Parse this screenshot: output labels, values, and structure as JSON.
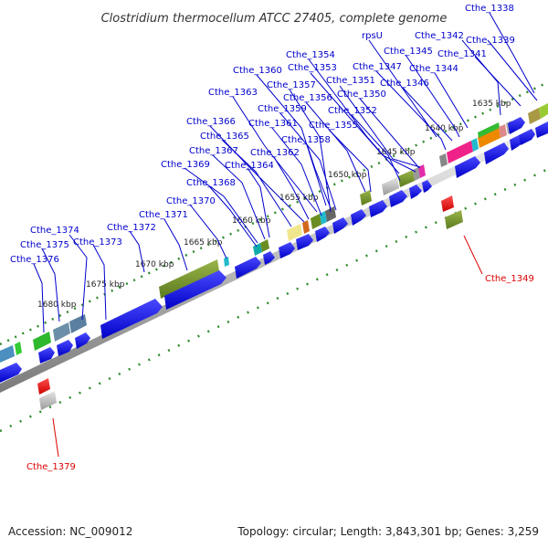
{
  "title": "Clostridium thermocellum ATCC 27405, complete genome",
  "footer": {
    "accession": "Accession: NC_009012",
    "summary": "Topology: circular; Length: 3,843,301 bp; Genes: 3,259"
  },
  "ticks": [
    "1635 kbp",
    "1640 kbp",
    "1645 kbp",
    "1650 kbp",
    "1655 kbp",
    "1660 kbp",
    "1665 kbp",
    "1670 kbp",
    "1675 kbp",
    "1680 kbp"
  ],
  "gene_labels": [
    "Cthe_1338",
    "Cthe_1339",
    "Cthe_1341",
    "Cthe_1342",
    "rpsU",
    "Cthe_1345",
    "Cthe_1344",
    "Cthe_1347",
    "Cthe_1346",
    "Cthe_1354",
    "Cthe_1353",
    "Cthe_1351",
    "Cthe_1350",
    "Cthe_1360",
    "Cthe_1357",
    "Cthe_1356",
    "Cthe_1352",
    "Cthe_1359",
    "Cthe_1363",
    "Cthe_1355",
    "Cthe_1361",
    "Cthe_1366",
    "Cthe_1358",
    "Cthe_1365",
    "Cthe_1362",
    "Cthe_1367",
    "Cthe_1364",
    "Cthe_1369",
    "Cthe_1368",
    "Cthe_1370",
    "Cthe_1371",
    "Cthe_1372",
    "Cthe_1374",
    "Cthe_1373",
    "Cthe_1375",
    "Cthe_1376"
  ],
  "red_labels": [
    "Cthe_1349",
    "Cthe_1379"
  ],
  "colors": {
    "forward_gene": "#0000dd",
    "highlight_gene": "#ee0000",
    "ortholog_dark": "#6b8e23",
    "backbone": "#bbbbbb",
    "tick_dots": "#2e8b2e",
    "label_blue": "#0000cc",
    "label_red": "#dd0000"
  }
}
